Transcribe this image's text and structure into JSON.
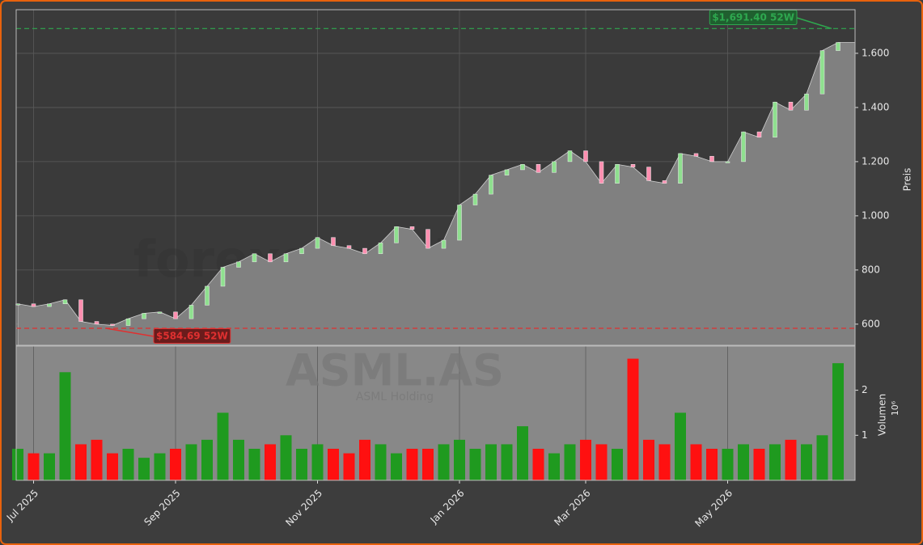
{
  "chart_data": {
    "type": "candlestick",
    "watermark": "forexsignale.trade",
    "symbol": "ASML.AS",
    "name": "ASML Holding",
    "ylabel": "Preis",
    "y2label": "Volumen",
    "y2scale": "10⁶",
    "categories": [
      null,
      "Jul 2025",
      null,
      null,
      null,
      null,
      null,
      null,
      null,
      null,
      "Sep 2025",
      null,
      null,
      null,
      null,
      null,
      null,
      null,
      null,
      "Nov 2025",
      null,
      null,
      null,
      null,
      null,
      null,
      null,
      null,
      "Jan 2026",
      null,
      null,
      null,
      null,
      null,
      null,
      null,
      "Mar 2026",
      null,
      null,
      null,
      null,
      null,
      null,
      null,
      null,
      "May 2026",
      null,
      null,
      null,
      null,
      null,
      null,
      null
    ],
    "close": [
      675,
      665,
      675,
      690,
      610,
      600,
      595,
      620,
      640,
      645,
      620,
      670,
      740,
      810,
      830,
      860,
      830,
      860,
      880,
      920,
      890,
      880,
      860,
      900,
      960,
      950,
      880,
      910,
      1040,
      1080,
      1150,
      1170,
      1190,
      1160,
      1200,
      1240,
      1200,
      1120,
      1190,
      1180,
      1130,
      1120,
      1230,
      1220,
      1200,
      1200,
      1310,
      1290,
      1420,
      1390,
      1450,
      1610,
      1640
    ],
    "volume": [
      0.7,
      0.6,
      0.6,
      2.4,
      0.8,
      0.9,
      0.6,
      0.7,
      0.5,
      0.6,
      0.7,
      0.8,
      0.9,
      1.5,
      0.9,
      0.7,
      0.8,
      1.0,
      0.7,
      0.8,
      0.7,
      0.6,
      0.9,
      0.8,
      0.6,
      0.7,
      0.7,
      0.8,
      0.9,
      0.7,
      0.8,
      0.8,
      1.2,
      0.7,
      0.6,
      0.8,
      0.9,
      0.8,
      0.7,
      2.7,
      0.9,
      0.8,
      1.5,
      0.8,
      0.7,
      0.7,
      0.8,
      0.7,
      0.8,
      0.9,
      0.8,
      1.0,
      2.6
    ],
    "up_color": "#1f9a1f",
    "down_color": "#ff1010",
    "ylim": [
      522,
      1761
    ],
    "yticks": [
      600,
      800,
      {
        "value": 1000,
        "label": "1.000"
      },
      {
        "value": 1200,
        "label": "1.200"
      },
      {
        "value": 1400,
        "label": "1.400"
      },
      {
        "value": 1600,
        "label": "1.600"
      }
    ],
    "y2lim": [
      0,
      2.98
    ],
    "y2ticks": [
      1,
      2
    ],
    "high": {
      "value": 1691.4,
      "label": "$1,691.40 52W"
    },
    "low": {
      "value": 584.69,
      "label": "$584.69 52W"
    },
    "grid": true
  }
}
